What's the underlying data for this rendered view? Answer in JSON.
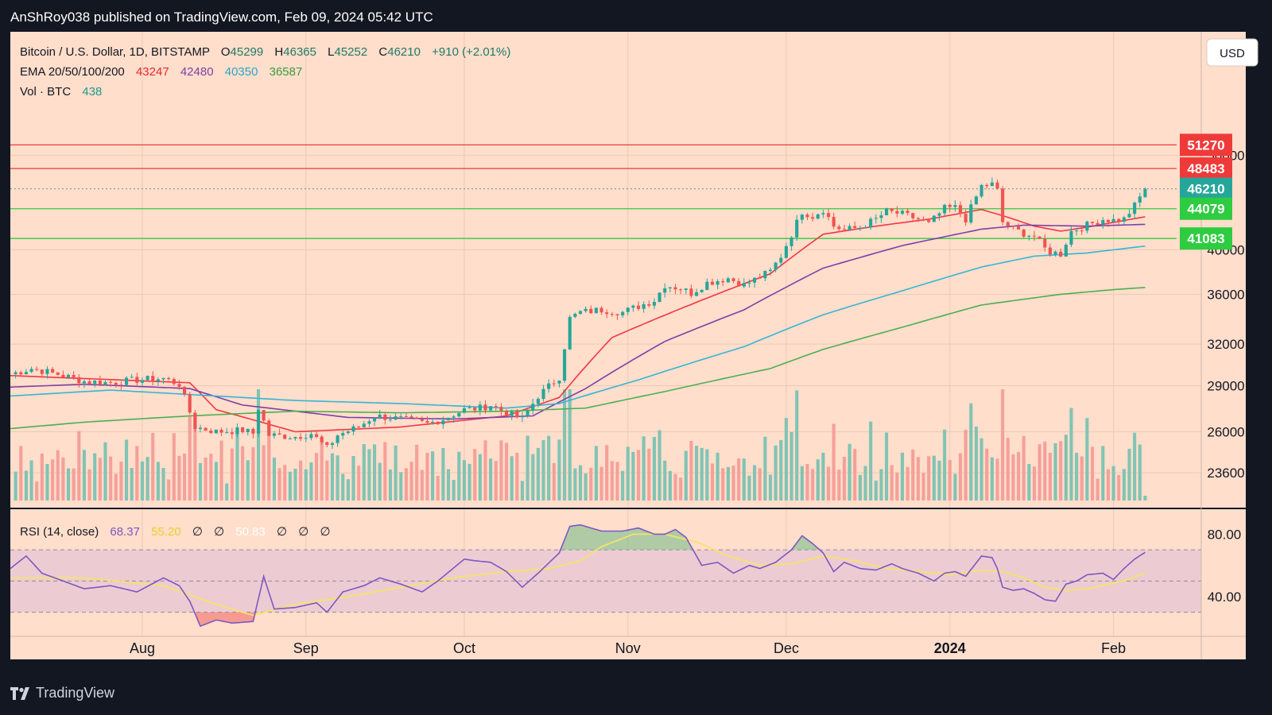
{
  "header": {
    "publish_line": "AnShRoy038 published on TradingView.com, Feb 09, 2024 05:42 UTC"
  },
  "footer": {
    "brand": "TradingView"
  },
  "colors": {
    "background": "#ffdecb",
    "frame": "#131722",
    "up": "#26a69a",
    "down": "#ef5350",
    "ema20": "#f23645",
    "ema50": "#7e3fa8",
    "ema100": "#33b5d6",
    "ema200": "#4caf50",
    "rsi": "#7e57c2",
    "rsi_ma": "#f5e36a"
  },
  "legend": {
    "symbol": "Bitcoin / U.S. Dollar, 1D, BITSTAMP",
    "ohlc": [
      {
        "label": "O",
        "value": "45299"
      },
      {
        "label": "H",
        "value": "46365"
      },
      {
        "label": "L",
        "value": "45252"
      },
      {
        "label": "C",
        "value": "46210"
      }
    ],
    "change": "+910 (+2.01%)",
    "ema_label": "EMA 20/50/100/200",
    "ema_values": [
      "43247",
      "42480",
      "40350",
      "36587"
    ],
    "vol_label": "Vol · BTC",
    "vol_value": "438",
    "rsi_label": "RSI (14, close)",
    "rsi_values": [
      "68.37",
      "55.20",
      "∅",
      "∅",
      "50.83",
      "∅",
      "∅",
      "∅"
    ]
  },
  "currency_button": "USD",
  "chart_data": [
    {
      "type": "candlestick",
      "title": "Bitcoin / U.S. Dollar, 1D, BITSTAMP",
      "xlabel": "",
      "ylabel": "",
      "scale": "log",
      "ylim": [
        22100,
        55000
      ],
      "x_ticks": [
        "Aug",
        "Sep",
        "Oct",
        "Nov",
        "Dec",
        "2024",
        "Feb"
      ],
      "x_tick_days": [
        31,
        62,
        92,
        123,
        153,
        184,
        215
      ],
      "x_range_days": [
        6,
        225
      ],
      "y_ticks": [
        23600,
        26000,
        29000,
        32000,
        36000,
        40000,
        50000
      ],
      "close_points": [
        [
          6,
          29800
        ],
        [
          10,
          30200
        ],
        [
          15,
          29800
        ],
        [
          20,
          29300
        ],
        [
          25,
          29200
        ],
        [
          30,
          29400
        ],
        [
          35,
          29500
        ],
        [
          38,
          29100
        ],
        [
          41,
          26300
        ],
        [
          45,
          26000
        ],
        [
          50,
          26100
        ],
        [
          52,
          25900
        ],
        [
          53,
          27500
        ],
        [
          55,
          25800
        ],
        [
          60,
          25700
        ],
        [
          63,
          25900
        ],
        [
          66,
          25000
        ],
        [
          68,
          25800
        ],
        [
          72,
          26300
        ],
        [
          75,
          27000
        ],
        [
          80,
          26800
        ],
        [
          85,
          26500
        ],
        [
          88,
          26800
        ],
        [
          92,
          27400
        ],
        [
          95,
          27500
        ],
        [
          97,
          27700
        ],
        [
          100,
          27200
        ],
        [
          103,
          26800
        ],
        [
          106,
          28300
        ],
        [
          110,
          29600
        ],
        [
          112,
          34000
        ],
        [
          114,
          34500
        ],
        [
          118,
          34700
        ],
        [
          122,
          34500
        ],
        [
          125,
          35000
        ],
        [
          128,
          35500
        ],
        [
          130,
          36800
        ],
        [
          133,
          36500
        ],
        [
          135,
          36100
        ],
        [
          138,
          37000
        ],
        [
          142,
          37400
        ],
        [
          145,
          36800
        ],
        [
          148,
          37500
        ],
        [
          150,
          38000
        ],
        [
          152,
          39400
        ],
        [
          154,
          41500
        ],
        [
          156,
          43800
        ],
        [
          158,
          43300
        ],
        [
          160,
          44000
        ],
        [
          162,
          42300
        ],
        [
          164,
          41900
        ],
        [
          167,
          42200
        ],
        [
          170,
          43000
        ],
        [
          172,
          43800
        ],
        [
          175,
          43500
        ],
        [
          178,
          43000
        ],
        [
          180,
          42500
        ],
        [
          183,
          44100
        ],
        [
          185,
          44200
        ],
        [
          187,
          43000
        ],
        [
          190,
          46500
        ],
        [
          192,
          46700
        ],
        [
          193,
          46000
        ],
        [
          194,
          42700
        ],
        [
          196,
          42000
        ],
        [
          198,
          41600
        ],
        [
          200,
          41300
        ],
        [
          202,
          40100
        ],
        [
          203,
          39800
        ],
        [
          205,
          39600
        ],
        [
          207,
          41800
        ],
        [
          209,
          42200
        ],
        [
          211,
          42600
        ],
        [
          213,
          43000
        ],
        [
          215,
          42900
        ],
        [
          217,
          43000
        ],
        [
          219,
          44400
        ],
        [
          220,
          45300
        ],
        [
          221,
          46210
        ]
      ],
      "series": [
        {
          "name": "EMA 20",
          "points": [
            [
              6,
              29700
            ],
            [
              40,
              29200
            ],
            [
              45,
              27400
            ],
            [
              60,
              26000
            ],
            [
              80,
              26300
            ],
            [
              100,
              27000
            ],
            [
              110,
              28200
            ],
            [
              120,
              32500
            ],
            [
              150,
              37800
            ],
            [
              160,
              41500
            ],
            [
              170,
              42300
            ],
            [
              180,
              43000
            ],
            [
              190,
              44000
            ],
            [
              195,
              43200
            ],
            [
              200,
              42300
            ],
            [
              205,
              41800
            ],
            [
              210,
              42200
            ],
            [
              221,
              43247
            ]
          ]
        },
        {
          "name": "EMA 50",
          "points": [
            [
              6,
              28900
            ],
            [
              20,
              29100
            ],
            [
              40,
              28800
            ],
            [
              50,
              27700
            ],
            [
              70,
              26900
            ],
            [
              90,
              26800
            ],
            [
              105,
              27000
            ],
            [
              115,
              28800
            ],
            [
              130,
              32200
            ],
            [
              145,
              34700
            ],
            [
              160,
              38300
            ],
            [
              175,
              40400
            ],
            [
              190,
              42000
            ],
            [
              198,
              42400
            ],
            [
              210,
              42300
            ],
            [
              221,
              42480
            ]
          ]
        },
        {
          "name": "EMA 100",
          "points": [
            [
              6,
              28300
            ],
            [
              25,
              28700
            ],
            [
              40,
              28400
            ],
            [
              60,
              28000
            ],
            [
              80,
              27800
            ],
            [
              100,
              27500
            ],
            [
              110,
              27800
            ],
            [
              125,
              29400
            ],
            [
              145,
              31800
            ],
            [
              160,
              34300
            ],
            [
              175,
              36300
            ],
            [
              190,
              38400
            ],
            [
              200,
              39400
            ],
            [
              210,
              39700
            ],
            [
              221,
              40350
            ]
          ]
        },
        {
          "name": "EMA 200",
          "points": [
            [
              6,
              26200
            ],
            [
              20,
              26600
            ],
            [
              40,
              27000
            ],
            [
              60,
              27300
            ],
            [
              80,
              27200
            ],
            [
              100,
              27300
            ],
            [
              115,
              27500
            ],
            [
              130,
              28600
            ],
            [
              150,
              30200
            ],
            [
              160,
              31600
            ],
            [
              175,
              33300
            ],
            [
              190,
              35100
            ],
            [
              205,
              36000
            ],
            [
              215,
              36400
            ],
            [
              221,
              36587
            ]
          ]
        }
      ],
      "horizontal_levels": [
        {
          "value": 51270,
          "label": "51270",
          "color": "#ef3a3a"
        },
        {
          "value": 48483,
          "label": "48483",
          "color": "#ef3a3a"
        },
        {
          "value": 46210,
          "label": "46210",
          "color": "#26a69a"
        },
        {
          "value": 44079,
          "label": "44079",
          "color": "#2ecc40"
        },
        {
          "value": 41083,
          "label": "41083",
          "color": "#2ecc40"
        }
      ],
      "annotations": [
        {
          "text": "Bitcoin / U.S. Dollar, 1D, BITSTAMP"
        }
      ]
    },
    {
      "type": "bar",
      "title": "Vol · BTC",
      "last_value": 438,
      "note": "volume bars colored by candle direction"
    },
    {
      "type": "line",
      "title": "RSI (14, close)",
      "ylim": [
        15,
        95
      ],
      "y_ticks": [
        40,
        80
      ],
      "bands": [
        30,
        50,
        70
      ],
      "series": [
        {
          "name": "RSI",
          "points": [
            [
              6,
              58
            ],
            [
              9,
              66
            ],
            [
              12,
              55
            ],
            [
              16,
              50
            ],
            [
              20,
              45
            ],
            [
              25,
              47
            ],
            [
              30,
              43
            ],
            [
              35,
              52
            ],
            [
              38,
              47
            ],
            [
              40,
              37
            ],
            [
              42,
              21
            ],
            [
              45,
              25
            ],
            [
              48,
              23
            ],
            [
              52,
              24
            ],
            [
              54,
              53
            ],
            [
              56,
              32
            ],
            [
              60,
              33
            ],
            [
              64,
              36
            ],
            [
              66,
              30
            ],
            [
              69,
              43
            ],
            [
              73,
              47
            ],
            [
              76,
              52
            ],
            [
              80,
              48
            ],
            [
              84,
              43
            ],
            [
              87,
              50
            ],
            [
              92,
              64
            ],
            [
              94,
              63
            ],
            [
              97,
              62
            ],
            [
              100,
              56
            ],
            [
              103,
              46
            ],
            [
              106,
              55
            ],
            [
              110,
              68
            ],
            [
              112,
              85
            ],
            [
              114,
              86
            ],
            [
              118,
              82
            ],
            [
              122,
              82
            ],
            [
              125,
              84
            ],
            [
              128,
              80
            ],
            [
              130,
              80
            ],
            [
              132,
              83
            ],
            [
              134,
              78
            ],
            [
              137,
              60
            ],
            [
              140,
              62
            ],
            [
              143,
              55
            ],
            [
              146,
              60
            ],
            [
              148,
              58
            ],
            [
              151,
              62
            ],
            [
              154,
              70
            ],
            [
              156,
              79
            ],
            [
              158,
              74
            ],
            [
              160,
              68
            ],
            [
              162,
              56
            ],
            [
              164,
              62
            ],
            [
              167,
              58
            ],
            [
              170,
              57
            ],
            [
              173,
              61
            ],
            [
              175,
              58
            ],
            [
              178,
              55
            ],
            [
              181,
              50
            ],
            [
              183,
              55
            ],
            [
              185,
              56
            ],
            [
              187,
              53
            ],
            [
              190,
              66
            ],
            [
              192,
              65
            ],
            [
              193,
              58
            ],
            [
              194,
              46
            ],
            [
              196,
              44
            ],
            [
              198,
              45
            ],
            [
              200,
              42
            ],
            [
              202,
              38
            ],
            [
              204,
              37
            ],
            [
              206,
              48
            ],
            [
              208,
              50
            ],
            [
              210,
              54
            ],
            [
              213,
              55
            ],
            [
              215,
              51
            ],
            [
              217,
              58
            ],
            [
              219,
              64
            ],
            [
              221,
              68.37
            ]
          ]
        },
        {
          "name": "RSI MA",
          "points": [
            [
              6,
              52
            ],
            [
              20,
              52
            ],
            [
              35,
              47
            ],
            [
              45,
              35
            ],
            [
              52,
              28
            ],
            [
              60,
              35
            ],
            [
              70,
              40
            ],
            [
              80,
              46
            ],
            [
              90,
              52
            ],
            [
              100,
              56
            ],
            [
              108,
              58
            ],
            [
              114,
              63
            ],
            [
              118,
              72
            ],
            [
              124,
              80
            ],
            [
              130,
              80
            ],
            [
              136,
              75
            ],
            [
              142,
              66
            ],
            [
              148,
              60
            ],
            [
              154,
              61
            ],
            [
              160,
              66
            ],
            [
              166,
              63
            ],
            [
              172,
              58
            ],
            [
              178,
              56
            ],
            [
              184,
              54
            ],
            [
              190,
              57
            ],
            [
              194,
              56
            ],
            [
              198,
              52
            ],
            [
              202,
              46
            ],
            [
              206,
              44
            ],
            [
              210,
              45
            ],
            [
              214,
              48
            ],
            [
              218,
              51
            ],
            [
              221,
              55.2
            ]
          ]
        }
      ]
    }
  ]
}
